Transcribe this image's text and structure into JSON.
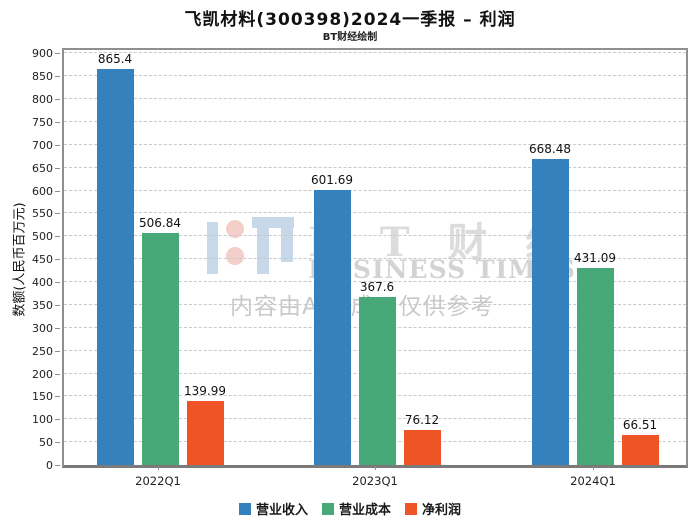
{
  "title": "飞凯材料(300398)2024一季报 – 利润",
  "subtitle": "BT财经绘制",
  "chart_data": {
    "type": "bar",
    "categories": [
      "2022Q1",
      "2023Q1",
      "2024Q1"
    ],
    "series": [
      {
        "name": "营业收入",
        "color": "#3581bd",
        "values": [
          865.4,
          601.69,
          668.48
        ]
      },
      {
        "name": "营业成本",
        "color": "#47a878",
        "values": [
          506.84,
          367.6,
          431.09
        ]
      },
      {
        "name": "净利润",
        "color": "#ef5426",
        "values": [
          139.99,
          76.12,
          66.51
        ]
      }
    ],
    "ylabel": "数额(人民币百万元)",
    "ylim": [
      0,
      900
    ],
    "ytick_step": 50,
    "grid": true,
    "grid_style": "dashed",
    "legend_position": "bottom",
    "value_labels_shown": true
  },
  "watermark": {
    "brand_cn": "B T 财 经",
    "brand_en": "BUSINESS TIMES",
    "ai_note": "内容由AI生成，仅供参考",
    "logo_blue": "#c7d9e9",
    "logo_pink": "#f4cfc9"
  }
}
